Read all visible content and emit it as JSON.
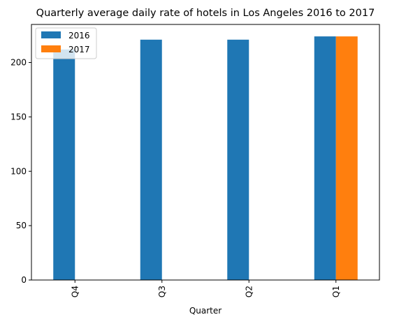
{
  "chart_data": {
    "type": "bar",
    "title": "Quarterly average daily rate of hotels in Los Angeles 2016 to 2017",
    "xlabel": "Quarter",
    "ylabel": "",
    "categories": [
      "Q4",
      "Q3",
      "Q2",
      "Q1"
    ],
    "series": [
      {
        "name": "2016",
        "values": [
          212,
          221,
          221,
          224
        ],
        "color": "#1f77b4"
      },
      {
        "name": "2017",
        "values": [
          null,
          null,
          null,
          224
        ],
        "color": "#ff7f0e"
      }
    ],
    "ylim": [
      0,
      235
    ],
    "yticks": [
      0,
      50,
      100,
      150,
      200
    ],
    "grid": false,
    "legend_position": "top-left"
  }
}
